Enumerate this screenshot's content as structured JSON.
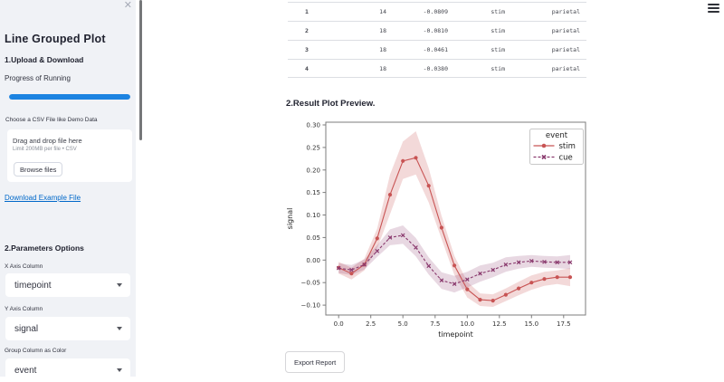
{
  "app": {
    "close_icon": "✕"
  },
  "sidebar": {
    "title": "Line Grouped Plot",
    "section_upload": "1.Upload & Download",
    "progress_label": "Progress of Running",
    "progress_percent": 100,
    "uploader": {
      "label": "Choose a CSV File like Demo Data",
      "drop_text": "Drag and drop file here",
      "limit_text": "Limit 200MB per file • CSV",
      "browse_label": "Browse files"
    },
    "download_link": "Download Example File",
    "section_params": "2.Parameters Options",
    "params": [
      {
        "label": "X Axis Column",
        "value": "timepoint"
      },
      {
        "label": "Y Axis Column",
        "value": "signal"
      },
      {
        "label": "Group Column as Color",
        "value": "event"
      }
    ]
  },
  "main": {
    "table": {
      "rows": [
        [
          "1",
          "14",
          "-0.0809",
          "stim",
          "parietal"
        ],
        [
          "2",
          "18",
          "-0.0810",
          "stim",
          "parietal"
        ],
        [
          "3",
          "18",
          "-0.0461",
          "stim",
          "parietal"
        ],
        [
          "4",
          "18",
          "-0.0380",
          "stim",
          "parietal"
        ]
      ]
    },
    "plot_heading": "2.Result Plot Preview.",
    "export_button": "Export Report"
  },
  "colors": {
    "accent": "#1c83e1",
    "link": "#0068c9",
    "sidebar_bg": "#f0f2f6",
    "stim": "#c85454",
    "cue": "#8a3a6e"
  },
  "chart_data": {
    "type": "line",
    "title": "",
    "xlabel": "timepoint",
    "ylabel": "signal",
    "xlim": [
      -1,
      19.2
    ],
    "ylim": [
      -0.122,
      0.306
    ],
    "grid": false,
    "legend": {
      "title": "event",
      "position": "upper right"
    },
    "xticks": [
      0,
      2.5,
      5,
      7.5,
      10,
      12.5,
      15,
      17.5
    ],
    "xtick_labels": [
      "0.0",
      "2.5",
      "5.0",
      "7.5",
      "10.0",
      "12.5",
      "15.0",
      "17.5"
    ],
    "yticks": [
      0.3,
      0.25,
      0.2,
      0.15,
      0.1,
      0.05,
      0.0,
      -0.05,
      -0.1
    ],
    "ytick_labels": [
      "0.30",
      "0.25",
      "0.20",
      "0.15",
      "0.10",
      "0.05",
      "0.00",
      "−0.05",
      "−0.10"
    ],
    "x": [
      0,
      1,
      2,
      3,
      4,
      5,
      6,
      7,
      8,
      9,
      10,
      11,
      12,
      13,
      14,
      15,
      16,
      17,
      18
    ],
    "series": [
      {
        "name": "stim",
        "color": "#c85454",
        "band_color": "rgba(200,84,84,0.22)",
        "marker": "circle",
        "dash": null,
        "values": [
          -0.017,
          -0.03,
          -0.01,
          0.048,
          0.145,
          0.22,
          0.227,
          0.165,
          0.072,
          -0.012,
          -0.065,
          -0.088,
          -0.09,
          -0.077,
          -0.063,
          -0.05,
          -0.042,
          -0.038,
          -0.038
        ],
        "lower": [
          -0.03,
          -0.043,
          -0.023,
          0.026,
          0.102,
          0.18,
          0.19,
          0.128,
          0.047,
          -0.033,
          -0.083,
          -0.102,
          -0.104,
          -0.091,
          -0.078,
          -0.066,
          -0.057,
          -0.053,
          -0.058
        ],
        "upper": [
          -0.004,
          -0.017,
          0.003,
          0.07,
          0.19,
          0.263,
          0.286,
          0.204,
          0.098,
          0.009,
          -0.048,
          -0.074,
          -0.076,
          -0.063,
          -0.048,
          -0.034,
          -0.026,
          -0.023,
          -0.018
        ]
      },
      {
        "name": "cue",
        "color": "#8a3a6e",
        "band_color": "rgba(138,58,110,0.20)",
        "marker": "x",
        "dash": "3 2",
        "values": [
          -0.018,
          -0.022,
          -0.01,
          0.02,
          0.05,
          0.055,
          0.028,
          -0.013,
          -0.045,
          -0.053,
          -0.043,
          -0.03,
          -0.022,
          -0.01,
          -0.005,
          -0.002,
          -0.004,
          -0.005,
          -0.005
        ],
        "lower": [
          -0.029,
          -0.033,
          -0.021,
          0.007,
          0.033,
          0.036,
          0.008,
          -0.032,
          -0.064,
          -0.072,
          -0.061,
          -0.048,
          -0.038,
          -0.026,
          -0.019,
          -0.015,
          -0.017,
          -0.018,
          -0.02
        ],
        "upper": [
          -0.007,
          -0.011,
          0.001,
          0.033,
          0.068,
          0.077,
          0.049,
          0.006,
          -0.027,
          -0.035,
          -0.026,
          -0.012,
          -0.006,
          0.006,
          0.009,
          0.011,
          0.009,
          0.008,
          0.011
        ]
      }
    ]
  }
}
